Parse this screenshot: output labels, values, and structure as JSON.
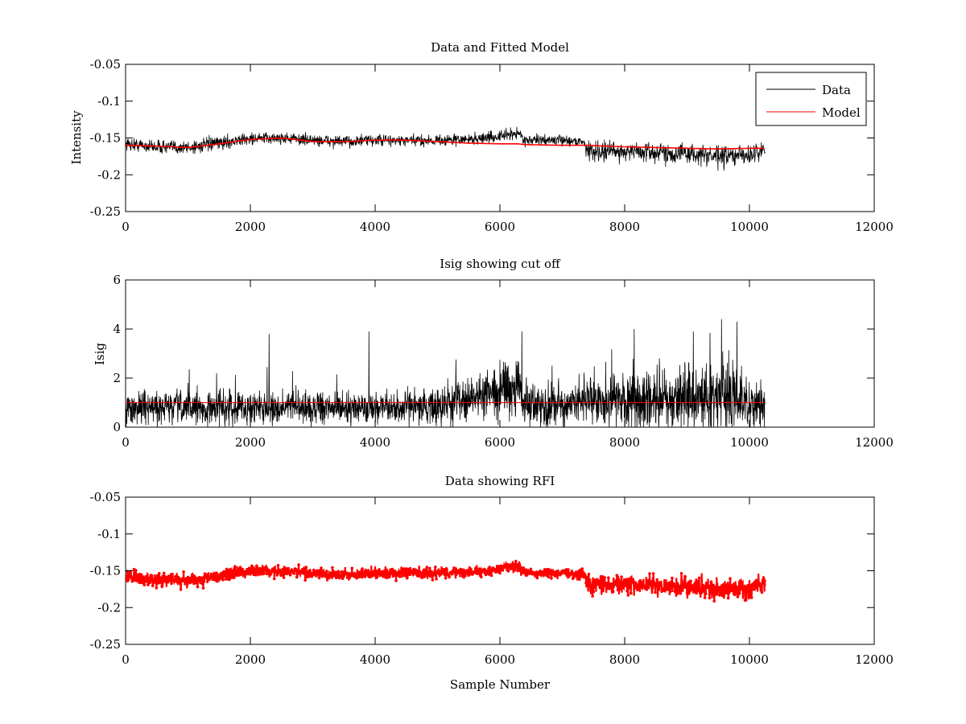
{
  "figure": {
    "background": "#ffffff"
  },
  "chart_data": [
    {
      "type": "line",
      "title": "Data and Fitted Model",
      "xlabel": "",
      "ylabel": "Intensity",
      "xlim": [
        0,
        12000
      ],
      "ylim": [
        -0.25,
        -0.05
      ],
      "y_reversed": true,
      "grid": false,
      "legend": "top-right",
      "x_ticks": [
        0,
        2000,
        4000,
        6000,
        8000,
        10000,
        12000
      ],
      "x_tick_labels": [
        "0",
        "2000",
        "4000",
        "6000",
        "8000",
        "10000",
        "12000"
      ],
      "y_ticks": [
        -0.05,
        -0.1,
        -0.15,
        -0.2,
        -0.25
      ],
      "y_tick_labels": [
        "-0.05",
        "-0.1",
        "-0.15",
        "-0.2",
        "-0.25"
      ],
      "x": [
        0,
        500,
        1000,
        1500,
        2000,
        2500,
        3000,
        3500,
        4000,
        4500,
        5000,
        5500,
        6000,
        6300,
        6400,
        7000,
        7350,
        7400,
        8000,
        8500,
        9000,
        9500,
        10000,
        10250
      ],
      "series": [
        {
          "name": "Data",
          "color": "#000000",
          "style": "noisy-line",
          "values": [
            -0.158,
            -0.162,
            -0.163,
            -0.157,
            -0.151,
            -0.15,
            -0.153,
            -0.155,
            -0.153,
            -0.154,
            -0.153,
            -0.152,
            -0.148,
            -0.143,
            -0.153,
            -0.153,
            -0.155,
            -0.168,
            -0.168,
            -0.17,
            -0.171,
            -0.176,
            -0.173,
            -0.166
          ],
          "noise": [
            0.008,
            0.008,
            0.009,
            0.008,
            0.007,
            0.007,
            0.007,
            0.007,
            0.007,
            0.007,
            0.007,
            0.007,
            0.007,
            0.008,
            0.006,
            0.006,
            0.006,
            0.012,
            0.012,
            0.012,
            0.012,
            0.013,
            0.012,
            0.01
          ]
        },
        {
          "name": "Model",
          "color": "#ff0000",
          "style": "line",
          "values": [
            -0.16,
            -0.161,
            -0.163,
            -0.158,
            -0.152,
            -0.15,
            -0.155,
            -0.155,
            -0.153,
            -0.153,
            -0.155,
            -0.157,
            -0.158,
            -0.158,
            -0.159,
            -0.16,
            -0.16,
            -0.16,
            -0.162,
            -0.163,
            -0.164,
            -0.165,
            -0.164,
            -0.164
          ]
        }
      ]
    },
    {
      "type": "line",
      "title": "Isig showing cut off",
      "xlabel": "",
      "ylabel": "Isig",
      "xlim": [
        0,
        12000
      ],
      "ylim": [
        0,
        6
      ],
      "y_reversed": false,
      "grid": false,
      "x_ticks": [
        0,
        2000,
        4000,
        6000,
        8000,
        10000,
        12000
      ],
      "x_tick_labels": [
        "0",
        "2000",
        "4000",
        "6000",
        "8000",
        "10000",
        "12000"
      ],
      "y_ticks": [
        0,
        2,
        4,
        6
      ],
      "y_tick_labels": [
        "0",
        "2",
        "4",
        "6"
      ],
      "x": [
        0,
        500,
        1000,
        1500,
        2000,
        2500,
        3000,
        3500,
        4000,
        4500,
        5000,
        5200,
        5500,
        6000,
        6300,
        6400,
        7000,
        7350,
        7400,
        8000,
        8500,
        9000,
        9500,
        10000,
        10250
      ],
      "series": [
        {
          "name": "",
          "color": "#000000",
          "style": "spiky-line",
          "values": [
            0.8,
            0.8,
            0.8,
            0.8,
            0.8,
            0.8,
            0.8,
            0.8,
            0.8,
            0.8,
            0.8,
            1.1,
            1.2,
            1.4,
            1.8,
            0.8,
            0.9,
            1.0,
            1.1,
            1.1,
            1.1,
            1.2,
            1.2,
            1.1,
            1.0
          ],
          "spread": [
            0.7,
            0.7,
            0.7,
            0.7,
            0.7,
            0.7,
            0.7,
            0.7,
            0.7,
            0.7,
            0.8,
            1.0,
            1.0,
            1.1,
            1.3,
            0.9,
            0.9,
            1.0,
            1.2,
            1.3,
            1.3,
            1.5,
            1.5,
            1.3,
            1.0
          ],
          "peaks": [
            [
              2300,
              3.8
            ],
            [
              3900,
              3.9
            ],
            [
              6350,
              3.9
            ],
            [
              8150,
              4.0
            ],
            [
              9100,
              3.9
            ],
            [
              9550,
              4.4
            ],
            [
              9800,
              4.3
            ]
          ]
        },
        {
          "name": "",
          "color": "#ff0000",
          "style": "line",
          "values": [
            1.0,
            1.0,
            1.0,
            1.0,
            1.0,
            1.0,
            1.0,
            1.0,
            1.0,
            1.0,
            1.0,
            1.0,
            1.0,
            1.0,
            1.0,
            1.0,
            1.0,
            1.0,
            1.0,
            1.0,
            1.0,
            1.0,
            1.0,
            1.0,
            1.0
          ]
        }
      ]
    },
    {
      "type": "line",
      "title": "Data showing RFI",
      "xlabel": "Sample Number",
      "ylabel": "",
      "xlim": [
        0,
        12000
      ],
      "ylim": [
        -0.25,
        -0.05
      ],
      "y_reversed": true,
      "grid": false,
      "x_ticks": [
        0,
        2000,
        4000,
        6000,
        8000,
        10000,
        12000
      ],
      "x_tick_labels": [
        "0",
        "2000",
        "4000",
        "6000",
        "8000",
        "10000",
        "12000"
      ],
      "y_ticks": [
        -0.05,
        -0.1,
        -0.15,
        -0.2,
        -0.25
      ],
      "y_tick_labels": [
        "-0.05",
        "-0.1",
        "-0.15",
        "-0.2",
        "-0.25"
      ],
      "x": [
        0,
        500,
        1000,
        1500,
        2000,
        2500,
        3000,
        3500,
        4000,
        4500,
        5000,
        5500,
        6000,
        6300,
        6400,
        7000,
        7350,
        7400,
        8000,
        8500,
        9000,
        9500,
        10000,
        10250
      ],
      "series": [
        {
          "name": "",
          "color": "#ff0000",
          "style": "noisy-line-markers",
          "values": [
            -0.158,
            -0.162,
            -0.163,
            -0.157,
            -0.151,
            -0.15,
            -0.153,
            -0.155,
            -0.153,
            -0.154,
            -0.153,
            -0.152,
            -0.148,
            -0.143,
            -0.153,
            -0.153,
            -0.155,
            -0.168,
            -0.168,
            -0.17,
            -0.171,
            -0.176,
            -0.173,
            -0.166
          ],
          "noise": [
            0.008,
            0.008,
            0.009,
            0.008,
            0.007,
            0.007,
            0.007,
            0.007,
            0.007,
            0.007,
            0.007,
            0.007,
            0.007,
            0.008,
            0.006,
            0.006,
            0.006,
            0.012,
            0.012,
            0.012,
            0.012,
            0.013,
            0.012,
            0.01
          ]
        }
      ]
    }
  ]
}
